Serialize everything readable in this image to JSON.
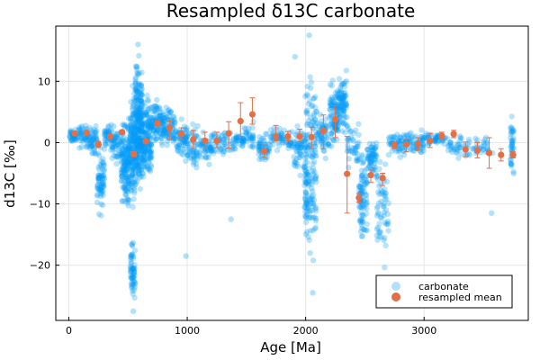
{
  "chart_data": {
    "type": "scatter",
    "title": "Resampled δ13C carbonate",
    "xlabel": "Age [Ma]",
    "ylabel": "d13C [‰]",
    "xlim": [
      -110,
      3880
    ],
    "ylim": [
      -29,
      19
    ],
    "xticks": [
      0,
      1000,
      2000,
      3000
    ],
    "yticks": [
      -20,
      -10,
      0,
      10
    ],
    "grid": true,
    "legend_position": "bottom-right",
    "colors": {
      "carbonate": "#009af9",
      "resampled": "#e26f46"
    },
    "legend": [
      {
        "label": "carbonate",
        "marker": "raw-dot"
      },
      {
        "label": "resampled mean",
        "marker": "mean-dot"
      }
    ],
    "carbonate_clusters": [
      {
        "x": [
          0,
          80
        ],
        "y": [
          -0.5,
          2.5
        ],
        "n": 40
      },
      {
        "x": [
          80,
          180
        ],
        "y": [
          -1.5,
          3.5
        ],
        "n": 50
      },
      {
        "x": [
          180,
          240
        ],
        "y": [
          -3,
          4
        ],
        "n": 40
      },
      {
        "x": [
          240,
          300
        ],
        "y": [
          -13,
          0.5
        ],
        "n": 70
      },
      {
        "x": [
          300,
          360
        ],
        "y": [
          -2,
          4
        ],
        "n": 40
      },
      {
        "x": [
          360,
          440
        ],
        "y": [
          -4,
          3.5
        ],
        "n": 50
      },
      {
        "x": [
          440,
          520
        ],
        "y": [
          -12,
          6
        ],
        "n": 160
      },
      {
        "x": [
          520,
          560
        ],
        "y": [
          -27,
          -15
        ],
        "n": 60
      },
      {
        "x": [
          520,
          560
        ],
        "y": [
          -14,
          11
        ],
        "n": 120
      },
      {
        "x": [
          560,
          620
        ],
        "y": [
          -12,
          16
        ],
        "n": 260
      },
      {
        "x": [
          620,
          700
        ],
        "y": [
          -8,
          9
        ],
        "n": 160
      },
      {
        "x": [
          700,
          800
        ],
        "y": [
          -2,
          9
        ],
        "n": 90
      },
      {
        "x": [
          800,
          900
        ],
        "y": [
          -2,
          7
        ],
        "n": 70
      },
      {
        "x": [
          900,
          1000
        ],
        "y": [
          -4,
          5
        ],
        "n": 60
      },
      {
        "x": [
          1000,
          1100
        ],
        "y": [
          -6,
          4
        ],
        "n": 50
      },
      {
        "x": [
          1100,
          1200
        ],
        "y": [
          -4,
          2.5
        ],
        "n": 40
      },
      {
        "x": [
          1200,
          1400
        ],
        "y": [
          -3,
          3
        ],
        "n": 60
      },
      {
        "x": [
          1400,
          1480
        ],
        "y": [
          -1.5,
          2
        ],
        "n": 30
      },
      {
        "x": [
          1480,
          1560
        ],
        "y": [
          -2,
          4
        ],
        "n": 30
      },
      {
        "x": [
          1600,
          1700
        ],
        "y": [
          -3.5,
          2
        ],
        "n": 50
      },
      {
        "x": [
          1700,
          1900
        ],
        "y": [
          -2,
          3
        ],
        "n": 60
      },
      {
        "x": [
          1900,
          1990
        ],
        "y": [
          -6,
          4
        ],
        "n": 50
      },
      {
        "x": [
          1990,
          2030
        ],
        "y": [
          -20,
          14
        ],
        "n": 90
      },
      {
        "x": [
          2030,
          2090
        ],
        "y": [
          -24,
          17
        ],
        "n": 90
      },
      {
        "x": [
          2090,
          2200
        ],
        "y": [
          -4,
          6
        ],
        "n": 60
      },
      {
        "x": [
          2200,
          2280
        ],
        "y": [
          -2,
          11
        ],
        "n": 90
      },
      {
        "x": [
          2280,
          2350
        ],
        "y": [
          -1,
          13
        ],
        "n": 80
      },
      {
        "x": [
          2350,
          2450
        ],
        "y": [
          -5,
          4
        ],
        "n": 40
      },
      {
        "x": [
          2450,
          2520
        ],
        "y": [
          -18,
          0.5
        ],
        "n": 90
      },
      {
        "x": [
          2520,
          2600
        ],
        "y": [
          -7,
          2
        ],
        "n": 60
      },
      {
        "x": [
          2600,
          2700
        ],
        "y": [
          -22,
          1
        ],
        "n": 60
      },
      {
        "x": [
          2700,
          2850
        ],
        "y": [
          -3,
          2.5
        ],
        "n": 60
      },
      {
        "x": [
          2850,
          3000
        ],
        "y": [
          -2.5,
          2.5
        ],
        "n": 60
      },
      {
        "x": [
          3000,
          3200
        ],
        "y": [
          -1,
          2
        ],
        "n": 50
      },
      {
        "x": [
          3200,
          3400
        ],
        "y": [
          -3,
          2
        ],
        "n": 40
      },
      {
        "x": [
          3400,
          3600
        ],
        "y": [
          -3,
          1.5
        ],
        "n": 30
      },
      {
        "x": [
          3730,
          3760
        ],
        "y": [
          -7,
          5.5
        ],
        "n": 40
      }
    ],
    "carbonate_points": [
      [
        2030,
        17.5
      ],
      [
        585,
        16
      ],
      [
        1910,
        14
      ],
      [
        2060,
        -24.5
      ],
      [
        990,
        -18.5
      ],
      [
        1370,
        -12.5
      ],
      [
        3570,
        -11.5
      ],
      [
        545,
        -27.5
      ]
    ],
    "resampled": [
      {
        "x": 50,
        "y": 1.5,
        "lo": 1.2,
        "hi": 1.8
      },
      {
        "x": 150,
        "y": 1.6,
        "lo": 1.3,
        "hi": 1.9
      },
      {
        "x": 250,
        "y": -0.3,
        "lo": -0.8,
        "hi": 0.2
      },
      {
        "x": 350,
        "y": 1.0,
        "lo": 0.7,
        "hi": 1.3
      },
      {
        "x": 450,
        "y": 1.7,
        "lo": 1.4,
        "hi": 2.0
      },
      {
        "x": 550,
        "y": -1.9,
        "lo": -2.3,
        "hi": -1.5
      },
      {
        "x": 650,
        "y": 0.2,
        "lo": -0.1,
        "hi": 0.5
      },
      {
        "x": 750,
        "y": 3.1,
        "lo": 2.7,
        "hi": 3.5
      },
      {
        "x": 850,
        "y": 2.4,
        "lo": 0.5,
        "hi": 3.5
      },
      {
        "x": 950,
        "y": 1.4,
        "lo": 0.5,
        "hi": 2.4
      },
      {
        "x": 1050,
        "y": 0.5,
        "lo": -1.0,
        "hi": 2.0
      },
      {
        "x": 1150,
        "y": 0.3,
        "lo": -1.0,
        "hi": 1.7
      },
      {
        "x": 1250,
        "y": 0.3,
        "lo": -0.8,
        "hi": 1.7
      },
      {
        "x": 1350,
        "y": 1.5,
        "lo": -0.9,
        "hi": 3.4
      },
      {
        "x": 1450,
        "y": 3.5,
        "lo": 1.0,
        "hi": 6.5
      },
      {
        "x": 1550,
        "y": 4.6,
        "lo": 3.0,
        "hi": 7.3
      },
      {
        "x": 1650,
        "y": -1.4,
        "lo": -2.4,
        "hi": -0.4
      },
      {
        "x": 1750,
        "y": 1.0,
        "lo": 0.3,
        "hi": 2.8
      },
      {
        "x": 1850,
        "y": 1.0,
        "lo": 0.3,
        "hi": 1.8
      },
      {
        "x": 1950,
        "y": 1.0,
        "lo": 0.2,
        "hi": 2.2
      },
      {
        "x": 2050,
        "y": 0.9,
        "lo": -1.0,
        "hi": 2.5
      },
      {
        "x": 2150,
        "y": 1.9,
        "lo": -1.0,
        "hi": 4.5
      },
      {
        "x": 2250,
        "y": 3.8,
        "lo": 0.8,
        "hi": 6.0
      },
      {
        "x": 2350,
        "y": -5.1,
        "lo": -11.5,
        "hi": 1.0
      },
      {
        "x": 2450,
        "y": -9.0,
        "lo": -9.7,
        "hi": -8.3
      },
      {
        "x": 2550,
        "y": -5.3,
        "lo": -6.5,
        "hi": -4.5
      },
      {
        "x": 2650,
        "y": -5.8,
        "lo": -7.0,
        "hi": -5.0
      },
      {
        "x": 2750,
        "y": -0.5,
        "lo": -1.0,
        "hi": 0.0
      },
      {
        "x": 2850,
        "y": -0.3,
        "lo": -1.5,
        "hi": 0.5
      },
      {
        "x": 2950,
        "y": -0.2,
        "lo": -1.2,
        "hi": 0.8
      },
      {
        "x": 3050,
        "y": 0.3,
        "lo": -0.8,
        "hi": 1.5
      },
      {
        "x": 3150,
        "y": 1.1,
        "lo": 0.5,
        "hi": 1.7
      },
      {
        "x": 3250,
        "y": 1.4,
        "lo": 0.8,
        "hi": 2.0
      },
      {
        "x": 3350,
        "y": -1.1,
        "lo": -2.3,
        "hi": 0.1
      },
      {
        "x": 3450,
        "y": -1.3,
        "lo": -2.5,
        "hi": 0.0
      },
      {
        "x": 3550,
        "y": -1.7,
        "lo": -4.2,
        "hi": 0.8
      },
      {
        "x": 3650,
        "y": -2.0,
        "lo": -3.0,
        "hi": -1.0
      },
      {
        "x": 3750,
        "y": -2.0,
        "lo": -2.5,
        "hi": -1.5
      }
    ]
  }
}
